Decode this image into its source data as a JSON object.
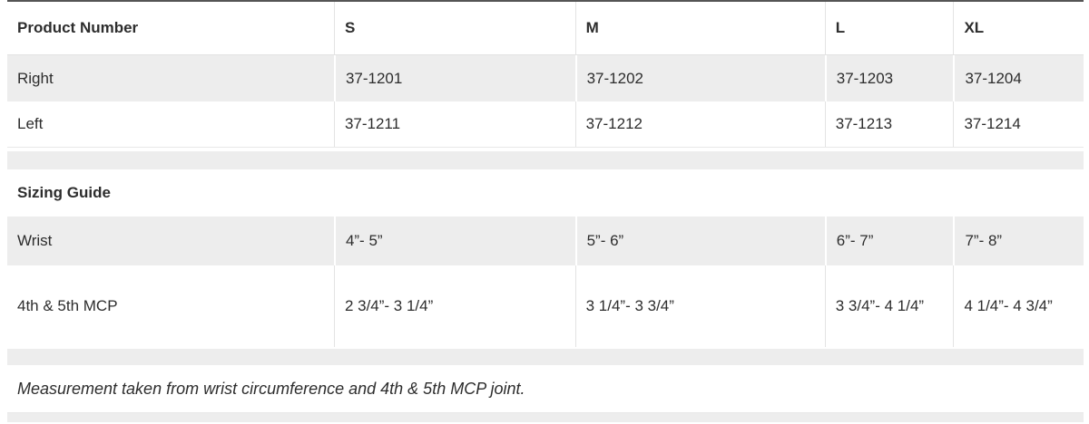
{
  "table": {
    "columns": [
      "Product Number",
      "S",
      "M",
      "L",
      "XL"
    ],
    "product_rows": [
      {
        "label": "Right",
        "values": [
          "37-1201",
          "37-1202",
          "37-1203",
          "37-1204"
        ]
      },
      {
        "label": "Left",
        "values": [
          "37-1211",
          "37-1212",
          "37-1213",
          "37-1214"
        ]
      }
    ],
    "section_header": "Sizing Guide",
    "sizing_rows": [
      {
        "label": "Wrist",
        "values": [
          "4”- 5”",
          "5”- 6”",
          "6”- 7”",
          "7”- 8”"
        ]
      },
      {
        "label": "4th & 5th MCP",
        "values": [
          "2 3/4”- 3 1/4”",
          "3 1/4”- 3 3/4”",
          "3 3/4”- 4 1/4”",
          "4 1/4”- 4 3/4”"
        ]
      }
    ],
    "footnote": "Measurement taken from wrist circumference and 4th & 5th MCP joint."
  },
  "colors": {
    "stripe_gray": "#ededed",
    "border_light": "#e3e3e3",
    "border_top_dark": "#555555",
    "text": "#2d2d2d"
  }
}
